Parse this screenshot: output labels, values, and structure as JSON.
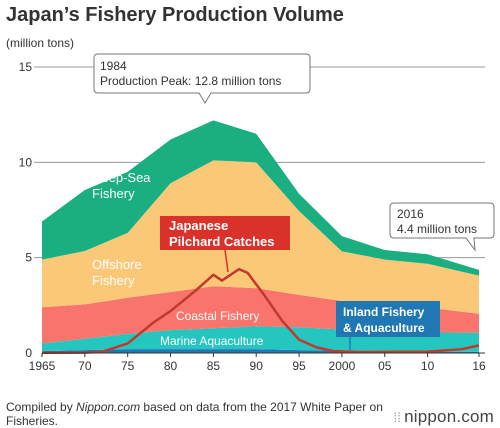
{
  "chart_data": {
    "type": "area",
    "title": "Japan’s Fishery Production Volume",
    "ylabel": "(million tons)",
    "ylim": [
      0,
      15
    ],
    "y_ticks": [
      "0",
      "5",
      "10",
      "15"
    ],
    "x_ticks": [
      {
        "year": 1965,
        "label": "1965"
      },
      {
        "year": 1970,
        "label": "70"
      },
      {
        "year": 1975,
        "label": "75"
      },
      {
        "year": 1980,
        "label": "80"
      },
      {
        "year": 1985,
        "label": "85"
      },
      {
        "year": 1990,
        "label": "90"
      },
      {
        "year": 1995,
        "label": "95"
      },
      {
        "year": 2000,
        "label": "2000"
      },
      {
        "year": 2005,
        "label": "05"
      },
      {
        "year": 2010,
        "label": "10"
      },
      {
        "year": 2016,
        "label": "16"
      }
    ],
    "stacked_series": [
      {
        "name": "Inland Fishery & Aquaculture",
        "color": "#1f78b4",
        "points": [
          [
            1965,
            0.1
          ],
          [
            1970,
            0.15
          ],
          [
            1975,
            0.2
          ],
          [
            1980,
            0.2
          ],
          [
            1985,
            0.2
          ],
          [
            1990,
            0.2
          ],
          [
            1995,
            0.15
          ],
          [
            2000,
            0.13
          ],
          [
            2005,
            0.1
          ],
          [
            2010,
            0.08
          ],
          [
            2016,
            0.06
          ]
        ]
      },
      {
        "name": "Marine Aquaculture",
        "color": "#26c6c0",
        "points": [
          [
            1965,
            0.4
          ],
          [
            1970,
            0.6
          ],
          [
            1975,
            0.8
          ],
          [
            1980,
            1.0
          ],
          [
            1985,
            1.1
          ],
          [
            1990,
            1.2
          ],
          [
            1995,
            1.2
          ],
          [
            2000,
            1.1
          ],
          [
            2005,
            1.1
          ],
          [
            2010,
            1.0
          ],
          [
            2016,
            1.0
          ]
        ]
      },
      {
        "name": "Coastal Fishery",
        "color": "#f8746c",
        "points": [
          [
            1965,
            1.9
          ],
          [
            1970,
            1.8
          ],
          [
            1975,
            1.9
          ],
          [
            1980,
            2.0
          ],
          [
            1985,
            2.2
          ],
          [
            1990,
            2.0
          ],
          [
            1995,
            1.7
          ],
          [
            2000,
            1.5
          ],
          [
            2005,
            1.3
          ],
          [
            2010,
            1.3
          ],
          [
            2016,
            1.0
          ]
        ]
      },
      {
        "name": "Offshore Fishery",
        "color": "#fbc877",
        "points": [
          [
            1965,
            2.5
          ],
          [
            1970,
            2.8
          ],
          [
            1975,
            3.4
          ],
          [
            1980,
            5.7
          ],
          [
            1985,
            6.6
          ],
          [
            1990,
            6.6
          ],
          [
            1995,
            4.4
          ],
          [
            2000,
            2.6
          ],
          [
            2005,
            2.4
          ],
          [
            2010,
            2.3
          ],
          [
            2016,
            2.0
          ]
        ]
      },
      {
        "name": "Deep-Sea Fishery",
        "color": "#1aae80",
        "points": [
          [
            1965,
            2.0
          ],
          [
            1970,
            3.2
          ],
          [
            1975,
            3.2
          ],
          [
            1980,
            2.3
          ],
          [
            1985,
            2.1
          ],
          [
            1990,
            1.5
          ],
          [
            1995,
            0.9
          ],
          [
            2000,
            0.8
          ],
          [
            2005,
            0.5
          ],
          [
            2010,
            0.5
          ],
          [
            2016,
            0.3
          ]
        ]
      }
    ],
    "line_series": [
      {
        "name": "Japanese Pilchard Catches",
        "color": "#c0392b",
        "points": [
          [
            1965,
            0.01
          ],
          [
            1970,
            0.02
          ],
          [
            1972,
            0.06
          ],
          [
            1975,
            0.5
          ],
          [
            1978,
            1.6
          ],
          [
            1980,
            2.2
          ],
          [
            1983,
            3.3
          ],
          [
            1985,
            4.1
          ],
          [
            1986,
            3.8
          ],
          [
            1988,
            4.4
          ],
          [
            1989,
            4.2
          ],
          [
            1991,
            3.0
          ],
          [
            1993,
            1.7
          ],
          [
            1995,
            0.7
          ],
          [
            1997,
            0.3
          ],
          [
            1999,
            0.1
          ],
          [
            2002,
            0.05
          ],
          [
            2010,
            0.07
          ],
          [
            2014,
            0.2
          ],
          [
            2016,
            0.4
          ]
        ]
      }
    ],
    "labels": {
      "deep_sea_1": "Deep-Sea",
      "deep_sea_2": "Fishery",
      "offshore_1": "Offshore",
      "offshore_2": "Fishery",
      "coastal": "Coastal Fishery",
      "marine": "Marine Aquaculture",
      "pilchard_1": "Japanese",
      "pilchard_2": "Pilchard Catches",
      "inland_1": "Inland Fishery",
      "inland_2": "& Aquaculture"
    },
    "callouts": [
      {
        "line1": "1984",
        "line2": "Production Peak: 12.8 million tons"
      },
      {
        "line1": "2016",
        "line2": "4.4 million tons"
      }
    ]
  },
  "footer": {
    "source_prefix": "Compiled by ",
    "source_site": "Nippon.com",
    "source_suffix": " based on data from the 2017 White Paper on Fisheries.",
    "logo_text": "nippon.com"
  }
}
